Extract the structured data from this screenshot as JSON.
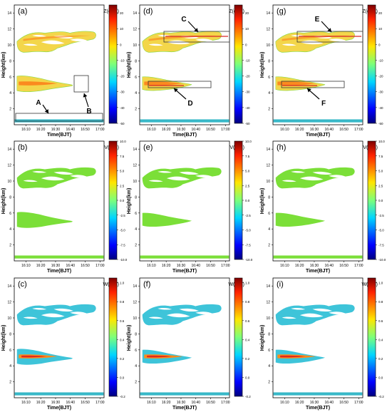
{
  "chart_data": [
    {
      "type": "heatmap",
      "panel_label": "(a)",
      "title": "Z(dBZ)",
      "xlabel": "Time(BJT)",
      "ylabel": "Height(km)",
      "x_ticks": [
        "16:10",
        "16:20",
        "16:30",
        "16:40",
        "16:50",
        "17:00"
      ],
      "y_ticks": [
        "2",
        "4",
        "6",
        "8",
        "10",
        "12",
        "14"
      ],
      "ylim": [
        0,
        15
      ],
      "colorbar_ticks": [
        "20",
        "10",
        "0",
        "-10",
        "-20",
        "-30",
        "-40",
        "-50"
      ],
      "colorbar_range": [
        -50,
        25
      ],
      "colormap": "jet",
      "annotations": [
        {
          "label": "A",
          "kind": "box-arrow"
        },
        {
          "label": "B",
          "kind": "box-arrow"
        }
      ]
    },
    {
      "type": "heatmap",
      "panel_label": "(d)",
      "title": "Z(dBZ)",
      "xlabel": "Time(BJT)",
      "ylabel": "Height(km)",
      "x_ticks": [
        "16:10",
        "16:20",
        "16:30",
        "16:40",
        "16:50",
        "17:00"
      ],
      "y_ticks": [
        "2",
        "4",
        "6",
        "8",
        "10",
        "12",
        "14"
      ],
      "ylim": [
        0,
        15
      ],
      "colorbar_ticks": [
        "20",
        "10",
        "0",
        "-10",
        "-20",
        "-30",
        "-40",
        "-50"
      ],
      "colorbar_range": [
        -50,
        25
      ],
      "colormap": "jet",
      "annotations": [
        {
          "label": "C",
          "kind": "box-arrow"
        },
        {
          "label": "D",
          "kind": "box-arrow"
        }
      ]
    },
    {
      "type": "heatmap",
      "panel_label": "(g)",
      "title": "Z(dBZ)",
      "xlabel": "Time(BJT)",
      "ylabel": "Height(km)",
      "x_ticks": [
        "16:10",
        "16:20",
        "16:30",
        "16:40",
        "16:50",
        "17:00"
      ],
      "y_ticks": [
        "2",
        "4",
        "6",
        "8",
        "10",
        "12",
        "14"
      ],
      "ylim": [
        0,
        15
      ],
      "colorbar_ticks": [
        "20",
        "10",
        "0",
        "-10",
        "-20",
        "-30",
        "-40",
        "-50"
      ],
      "colorbar_range": [
        -50,
        25
      ],
      "colormap": "jet",
      "annotations": [
        {
          "label": "E",
          "kind": "box-arrow"
        },
        {
          "label": "F",
          "kind": "box-arrow"
        }
      ]
    },
    {
      "type": "heatmap",
      "panel_label": "(b)",
      "title": "V(m/s)",
      "xlabel": "Time(BJT)",
      "ylabel": "Height(km)",
      "x_ticks": [
        "16:10",
        "16:20",
        "16:30",
        "16:40",
        "16:50",
        "17:00"
      ],
      "y_ticks": [
        "2",
        "4",
        "6",
        "8",
        "10",
        "12",
        "14"
      ],
      "ylim": [
        0,
        15
      ],
      "colorbar_ticks": [
        "10.0",
        "7.5",
        "5.0",
        "2.5",
        "0.0",
        "-2.5",
        "-5.0",
        "-7.5",
        "-10.0"
      ],
      "colorbar_range": [
        -10,
        10
      ],
      "colormap": "jet"
    },
    {
      "type": "heatmap",
      "panel_label": "(e)",
      "title": "V(m/s)",
      "xlabel": "Time(BJT)",
      "ylabel": "Height(km)",
      "x_ticks": [
        "16:10",
        "16:20",
        "16:30",
        "16:40",
        "16:50",
        "17:00"
      ],
      "y_ticks": [
        "2",
        "4",
        "6",
        "8",
        "10",
        "12",
        "14"
      ],
      "ylim": [
        0,
        15
      ],
      "colorbar_ticks": [
        "10.0",
        "7.5",
        "5.0",
        "2.5",
        "0.0",
        "-2.5",
        "-5.0",
        "-7.5",
        "-10.0"
      ],
      "colorbar_range": [
        -10,
        10
      ],
      "colormap": "jet"
    },
    {
      "type": "heatmap",
      "panel_label": "(h)",
      "title": "V(m/s)",
      "xlabel": "Time(BJT)",
      "ylabel": "Height(km)",
      "x_ticks": [
        "16:10",
        "16:20",
        "16:30",
        "16:40",
        "16:50",
        "17:00"
      ],
      "y_ticks": [
        "2",
        "4",
        "6",
        "8",
        "10",
        "12",
        "14"
      ],
      "ylim": [
        0,
        15
      ],
      "colorbar_ticks": [
        "10.0",
        "7.5",
        "5.0",
        "2.5",
        "0.0",
        "-2.5",
        "-5.0",
        "-7.5",
        "-10.0"
      ],
      "colorbar_range": [
        -10,
        10
      ],
      "colormap": "jet"
    },
    {
      "type": "heatmap",
      "panel_label": "(c)",
      "title": "W(m/s)",
      "xlabel": "Time(BJT)",
      "ylabel": "Height(km)",
      "x_ticks": [
        "16:10",
        "16:20",
        "16:30",
        "16:40",
        "16:50",
        "17:00"
      ],
      "y_ticks": [
        "2",
        "4",
        "6",
        "8",
        "10",
        "12",
        "14"
      ],
      "ylim": [
        0,
        15
      ],
      "colorbar_ticks": [
        "1.0",
        "0.8",
        "0.6",
        "0.4",
        "0.2",
        "0.0",
        "-0.2"
      ],
      "colorbar_range": [
        -0.2,
        1.05
      ],
      "colormap": "jet"
    },
    {
      "type": "heatmap",
      "panel_label": "(f)",
      "title": "W(m/s)",
      "xlabel": "Time(BJT)",
      "ylabel": "Height(km)",
      "x_ticks": [
        "16:10",
        "16:20",
        "16:30",
        "16:40",
        "16:50",
        "17:00"
      ],
      "y_ticks": [
        "2",
        "4",
        "6",
        "8",
        "10",
        "12",
        "14"
      ],
      "ylim": [
        0,
        15
      ],
      "colorbar_ticks": [
        "1.0",
        "0.8",
        "0.6",
        "0.4",
        "0.2",
        "0.0",
        "-0.2"
      ],
      "colorbar_range": [
        -0.2,
        1.05
      ],
      "colormap": "jet"
    },
    {
      "type": "heatmap",
      "panel_label": "(i)",
      "title": "W(m/s)",
      "xlabel": "Time(BJT)",
      "ylabel": "Height(km)",
      "x_ticks": [
        "16:10",
        "16:20",
        "16:30",
        "16:40",
        "16:50",
        "17:00"
      ],
      "y_ticks": [
        "2",
        "4",
        "6",
        "8",
        "10",
        "12",
        "14"
      ],
      "ylim": [
        0,
        15
      ],
      "colorbar_ticks": [
        "1.0",
        "0.8",
        "0.6",
        "0.4",
        "0.2",
        "0.0",
        "-0.2"
      ],
      "colorbar_range": [
        -0.2,
        1.05
      ],
      "colormap": "jet"
    }
  ],
  "colors": {
    "Z_fill": "#f3d64a",
    "Z_core": "#fb8a1f",
    "Z_edge": "#8ddc4b",
    "V_fill": "#7bdf38",
    "W_fill": "#3ec4d9",
    "W_core": "#ff8c1a",
    "W_core_hot": "#e02a1d",
    "ground_echo": "#38b8c8",
    "ground_echo_V": "#7bdf38",
    "box_stroke": "#333333",
    "box_red": "#d62828"
  }
}
